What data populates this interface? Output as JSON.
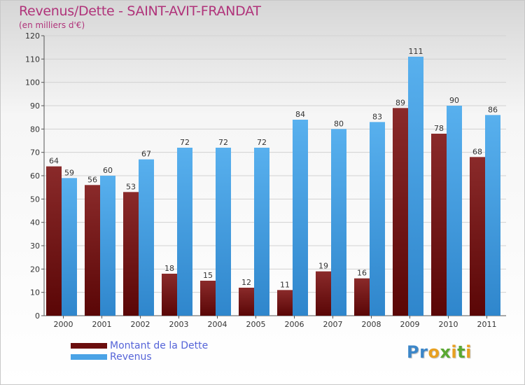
{
  "header": {
    "title": "Revenus/Dette - SAINT-AVIT-FRANDAT",
    "subtitle": "(en milliers d'€)"
  },
  "chart_data": {
    "type": "bar",
    "title": "Revenus/Dette - SAINT-AVIT-FRANDAT",
    "subtitle": "(en milliers d'€)",
    "categories": [
      "2000",
      "2001",
      "2002",
      "2003",
      "2004",
      "2005",
      "2006",
      "2007",
      "2008",
      "2009",
      "2010",
      "2011"
    ],
    "series": [
      {
        "name": "Montant de la Dette",
        "color": "#7a1d1d",
        "values": [
          64,
          56,
          53,
          18,
          15,
          12,
          11,
          19,
          16,
          89,
          78,
          68
        ]
      },
      {
        "name": "Revenus",
        "color": "#4aa3e6",
        "values": [
          59,
          60,
          67,
          72,
          72,
          72,
          84,
          80,
          83,
          111,
          90,
          86
        ]
      }
    ],
    "ylim": [
      0,
      120
    ],
    "yticks": [
      0,
      10,
      20,
      30,
      40,
      50,
      60,
      70,
      80,
      90,
      100,
      110,
      120
    ],
    "grid": true,
    "legend_position": "bottom-left",
    "data_labels": true
  },
  "legend": {
    "items": [
      {
        "label": "Montant de la Dette",
        "color": "#6b0e0e"
      },
      {
        "label": "Revenus",
        "color": "#4aa3e6"
      }
    ]
  },
  "logo": {
    "text": "Proxiti"
  }
}
